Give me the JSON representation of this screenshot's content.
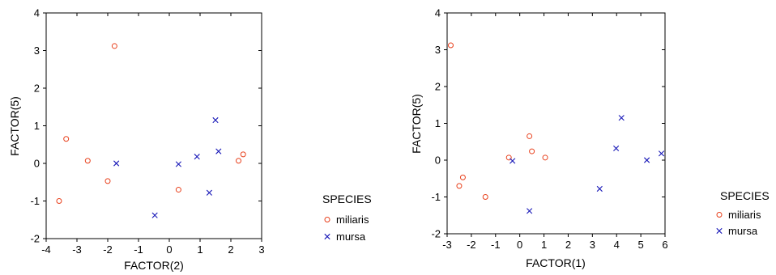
{
  "chart_data": [
    {
      "type": "scatter",
      "title": "",
      "xlabel": "FACTOR(2)",
      "ylabel": "FACTOR(5)",
      "xlim": [
        -4,
        3
      ],
      "ylim": [
        -2,
        4
      ],
      "xticks": [
        -4,
        -3,
        -2,
        -1,
        0,
        1,
        2,
        3
      ],
      "yticks": [
        -2,
        -1,
        0,
        1,
        2,
        3,
        4
      ],
      "xtick_labels": [
        "-4",
        "-3",
        "-2",
        "-1",
        "0",
        "1",
        "2",
        "3"
      ],
      "ytick_labels": [
        "-2",
        "-1",
        "0",
        "1",
        "2",
        "3",
        "4"
      ],
      "grid": false,
      "legend": {
        "title": "SPECIES",
        "placement": "right",
        "entries": [
          "miliaris",
          "mursa"
        ]
      },
      "series": [
        {
          "name": "miliaris",
          "marker": "circle",
          "color": "#e8401c",
          "points": [
            [
              -1.78,
              3.12
            ],
            [
              -3.35,
              0.65
            ],
            [
              -2.65,
              0.07
            ],
            [
              -2.0,
              -0.47
            ],
            [
              -3.58,
              -1.0
            ],
            [
              0.3,
              -0.7
            ],
            [
              2.25,
              0.07
            ],
            [
              2.4,
              0.24
            ]
          ]
        },
        {
          "name": "mursa",
          "marker": "x",
          "color": "#1a1ab8",
          "points": [
            [
              -1.72,
              0.0
            ],
            [
              -0.47,
              -1.38
            ],
            [
              0.3,
              -0.02
            ],
            [
              0.9,
              0.18
            ],
            [
              1.3,
              -0.78
            ],
            [
              1.5,
              1.15
            ],
            [
              1.6,
              0.32
            ]
          ]
        }
      ]
    },
    {
      "type": "scatter",
      "title": "",
      "xlabel": "FACTOR(1)",
      "ylabel": "FACTOR(5)",
      "xlim": [
        -3,
        6
      ],
      "ylim": [
        -2,
        4
      ],
      "xticks": [
        -3,
        -2,
        -1,
        0,
        1,
        2,
        3,
        4,
        5,
        6
      ],
      "yticks": [
        -2,
        -1,
        0,
        1,
        2,
        3,
        4
      ],
      "xtick_labels": [
        "-3",
        "-2",
        "-1",
        "0",
        "1",
        "2",
        "3",
        "4",
        "5",
        "6"
      ],
      "ytick_labels": [
        "-2",
        "-1",
        "0",
        "1",
        "2",
        "3",
        "4"
      ],
      "grid": false,
      "legend": {
        "title": "SPECIES",
        "placement": "right",
        "entries": [
          "miliaris",
          "mursa"
        ]
      },
      "series": [
        {
          "name": "miliaris",
          "marker": "circle",
          "color": "#e8401c",
          "points": [
            [
              -2.85,
              3.12
            ],
            [
              -2.5,
              -0.7
            ],
            [
              -2.35,
              -0.47
            ],
            [
              -1.42,
              -1.0
            ],
            [
              -0.45,
              0.07
            ],
            [
              0.4,
              0.65
            ],
            [
              0.5,
              0.24
            ],
            [
              1.05,
              0.07
            ]
          ]
        },
        {
          "name": "mursa",
          "marker": "x",
          "color": "#1a1ab8",
          "points": [
            [
              -0.3,
              -0.02
            ],
            [
              0.4,
              -1.38
            ],
            [
              3.3,
              -0.78
            ],
            [
              3.98,
              0.32
            ],
            [
              4.2,
              1.15
            ],
            [
              5.25,
              0.0
            ],
            [
              5.85,
              0.18
            ]
          ]
        }
      ]
    }
  ]
}
